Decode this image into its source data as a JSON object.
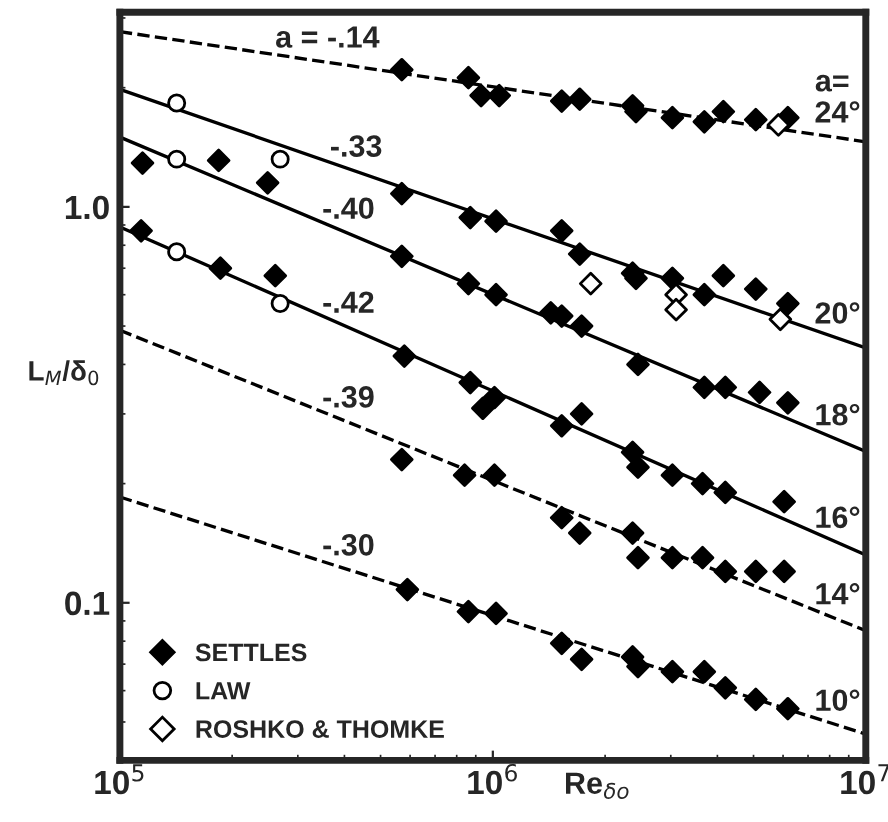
{
  "chart_data": {
    "type": "scatter",
    "xlabel": "Re$_{δo}$",
    "ylabel": "L$_{M}$/δ$_{0}$",
    "log": "xy",
    "xlim": [
      100000,
      10000000
    ],
    "ylim": [
      0.04,
      3.1
    ],
    "xticks": [
      {
        "value": 100000,
        "label": "10$^{5}$"
      },
      {
        "value": 1000000,
        "label": "10$^{6}$"
      },
      {
        "value": 10000000,
        "label": "10$^{7}$"
      }
    ],
    "yticks": [
      0.1,
      {
        "value": 1,
        "label": "1.0"
      }
    ],
    "grid": false,
    "legend": "bottom left",
    "series": [
      {
        "name": "SETTLES",
        "marker": "diamond",
        "color": "#000000",
        "x": [
          570000,
          860000,
          930000,
          1040000,
          1530000,
          1710000,
          2370000,
          2420000,
          3030000,
          3690000,
          4150000,
          5070000,
          6180000,
          570000,
          870000,
          1020000,
          1530000,
          1710000,
          2370000,
          2420000,
          3030000,
          3690000,
          4150000,
          5070000,
          6180000,
          115000,
          184000,
          249000,
          570000,
          860000,
          1020000,
          1430000,
          1530000,
          1730000,
          2450000,
          3690000,
          4200000,
          5190000,
          6180000,
          114000,
          186000,
          261000,
          579000,
          870000,
          940000,
          1010000,
          1530000,
          1730000,
          2370000,
          2450000,
          3030000,
          3650000,
          4200000,
          6040000,
          570000,
          840000,
          1010000,
          1530000,
          1710000,
          2370000,
          2450000,
          3030000,
          3650000,
          4200000,
          5070000,
          6040000,
          590000,
          860000,
          1020000,
          1530000,
          1730000,
          2370000,
          2450000,
          3030000,
          3690000,
          4200000,
          5070000,
          6180000
        ],
        "values": [
          2.22,
          2.12,
          1.91,
          1.91,
          1.85,
          1.87,
          1.8,
          1.74,
          1.68,
          1.64,
          1.74,
          1.66,
          1.68,
          1.08,
          0.94,
          0.92,
          0.87,
          0.76,
          0.68,
          0.66,
          0.66,
          0.6,
          0.67,
          0.62,
          0.57,
          1.29,
          1.31,
          1.15,
          0.75,
          0.64,
          0.6,
          0.54,
          0.53,
          0.5,
          0.4,
          0.35,
          0.35,
          0.34,
          0.32,
          0.87,
          0.7,
          0.67,
          0.42,
          0.36,
          0.31,
          0.33,
          0.28,
          0.3,
          0.24,
          0.22,
          0.21,
          0.2,
          0.19,
          0.18,
          0.23,
          0.21,
          0.21,
          0.164,
          0.15,
          0.15,
          0.13,
          0.13,
          0.13,
          0.12,
          0.12,
          0.12,
          0.108,
          0.095,
          0.094,
          0.079,
          0.072,
          0.073,
          0.069,
          0.067,
          0.067,
          0.061,
          0.057,
          0.054
        ]
      },
      {
        "name": "LAW",
        "marker": "circle",
        "color": "#ffffff",
        "x": [
          142000,
          142000,
          269000,
          142000,
          269000
        ],
        "values": [
          1.83,
          1.32,
          1.32,
          0.77,
          0.57
        ]
      },
      {
        "name": "ROSHKO & THOMKE",
        "marker": "diamond",
        "color": "#ffffff",
        "x": [
          5830000,
          1830000,
          3100000,
          3100000,
          5900000
        ],
        "values": [
          1.61,
          0.64,
          0.6,
          0.55,
          0.52
        ]
      },
      {
        "type": "line",
        "line_style": "dashed",
        "color": "#000000",
        "x": [
          100000,
          10000000
        ],
        "values": [
          2.77,
          1.46
        ]
      },
      {
        "type": "line",
        "line_style": "solid",
        "color": "#000000",
        "x": [
          100000,
          10000000
        ],
        "values": [
          1.98,
          0.44
        ]
      },
      {
        "type": "line",
        "line_style": "solid",
        "color": "#000000",
        "x": [
          100000,
          10000000
        ],
        "values": [
          1.5,
          0.241
        ]
      },
      {
        "type": "line",
        "line_style": "solid",
        "color": "#000000",
        "x": [
          100000,
          10000000
        ],
        "values": [
          0.89,
          0.132
        ]
      },
      {
        "type": "line",
        "line_style": "dashed",
        "color": "#000000",
        "x": [
          100000,
          10000000
        ],
        "values": [
          0.488,
          0.085
        ]
      },
      {
        "type": "line",
        "line_style": "dashed",
        "color": "#000000",
        "x": [
          100000,
          10000000
        ],
        "values": [
          0.185,
          0.0466
        ]
      }
    ],
    "annotations": [
      {
        "text": "a = -.14",
        "x": 360000,
        "y": 2.32
      },
      {
        "text": "-.33",
        "x": 430000,
        "y": 1.23
      },
      {
        "text": "-.40",
        "x": 410000,
        "y": 0.857
      },
      {
        "text": "-.42",
        "x": 410000,
        "y": 0.496
      },
      {
        "text": "-.39",
        "x": 410000,
        "y": 0.286
      },
      {
        "text": "-.30",
        "x": 410000,
        "y": 0.121
      },
      "a=",
      {
        "text": "24°",
        "x": 8400000,
        "y": 1.5
      },
      {
        "text": "20°",
        "x": 8400000,
        "y": 0.466
      },
      {
        "text": "18°",
        "x": 8400000,
        "y": 0.258
      },
      {
        "text": "16°",
        "x": 8400000,
        "y": 0.142
      },
      {
        "text": "14°",
        "x": 8400000,
        "y": 0.091
      },
      {
        "text": "10°",
        "x": 8400000,
        "y": 0.049
      }
    ]
  }
}
